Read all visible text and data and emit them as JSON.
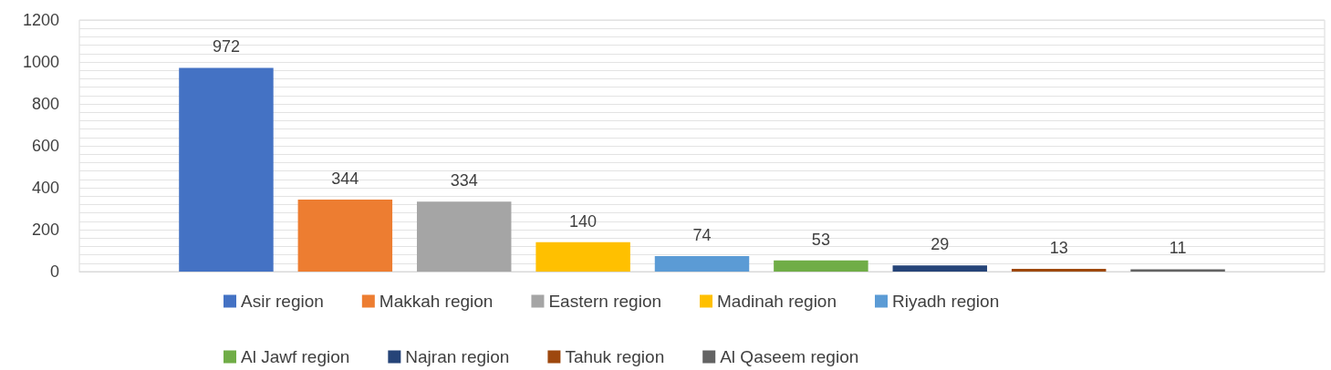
{
  "chart_data": {
    "type": "bar",
    "categories": [
      null
    ],
    "series": [
      {
        "name": "Asir region",
        "color": "#4472c4",
        "values": [
          972
        ]
      },
      {
        "name": "Makkah region",
        "color": "#ed7d31",
        "values": [
          344
        ]
      },
      {
        "name": "Eastern region",
        "color": "#a5a5a5",
        "values": [
          334
        ]
      },
      {
        "name": "Madinah region",
        "color": "#ffc000",
        "values": [
          140
        ]
      },
      {
        "name": "Riyadh region",
        "color": "#5b9bd5",
        "values": [
          74
        ]
      },
      {
        "name": "Al Jawf region",
        "color": "#70ad47",
        "values": [
          53
        ]
      },
      {
        "name": "Najran region",
        "color": "#264478",
        "values": [
          29
        ]
      },
      {
        "name": "Tahuk region",
        "color": "#9e480e",
        "values": [
          13
        ]
      },
      {
        "name": "Al Qaseem region",
        "color": "#636363",
        "values": [
          11
        ]
      }
    ],
    "ylim": [
      0,
      1200
    ],
    "yticks": [
      0,
      {
        "value": 40,
        "label": null
      },
      {
        "value": 80,
        "label": null
      },
      {
        "value": 120,
        "label": null
      },
      {
        "value": 160,
        "label": null
      },
      200,
      {
        "value": 240,
        "label": null
      },
      {
        "value": 280,
        "label": null
      },
      {
        "value": 320,
        "label": null
      },
      {
        "value": 360,
        "label": null
      },
      400,
      {
        "value": 440,
        "label": null
      },
      {
        "value": 480,
        "label": null
      },
      {
        "value": 520,
        "label": null
      },
      {
        "value": 560,
        "label": null
      },
      600,
      {
        "value": 640,
        "label": null
      },
      {
        "value": 680,
        "label": null
      },
      {
        "value": 720,
        "label": null
      },
      {
        "value": 760,
        "label": null
      },
      800,
      {
        "value": 840,
        "label": null
      },
      {
        "value": 880,
        "label": null
      },
      {
        "value": 920,
        "label": null
      },
      {
        "value": 960,
        "label": null
      },
      1000,
      {
        "value": 1040,
        "label": null
      },
      {
        "value": 1080,
        "label": null
      },
      {
        "value": 1120,
        "label": null
      },
      {
        "value": 1160,
        "label": null
      },
      1200
    ],
    "grid": "y",
    "legend": "bottom",
    "data_labels": true
  }
}
